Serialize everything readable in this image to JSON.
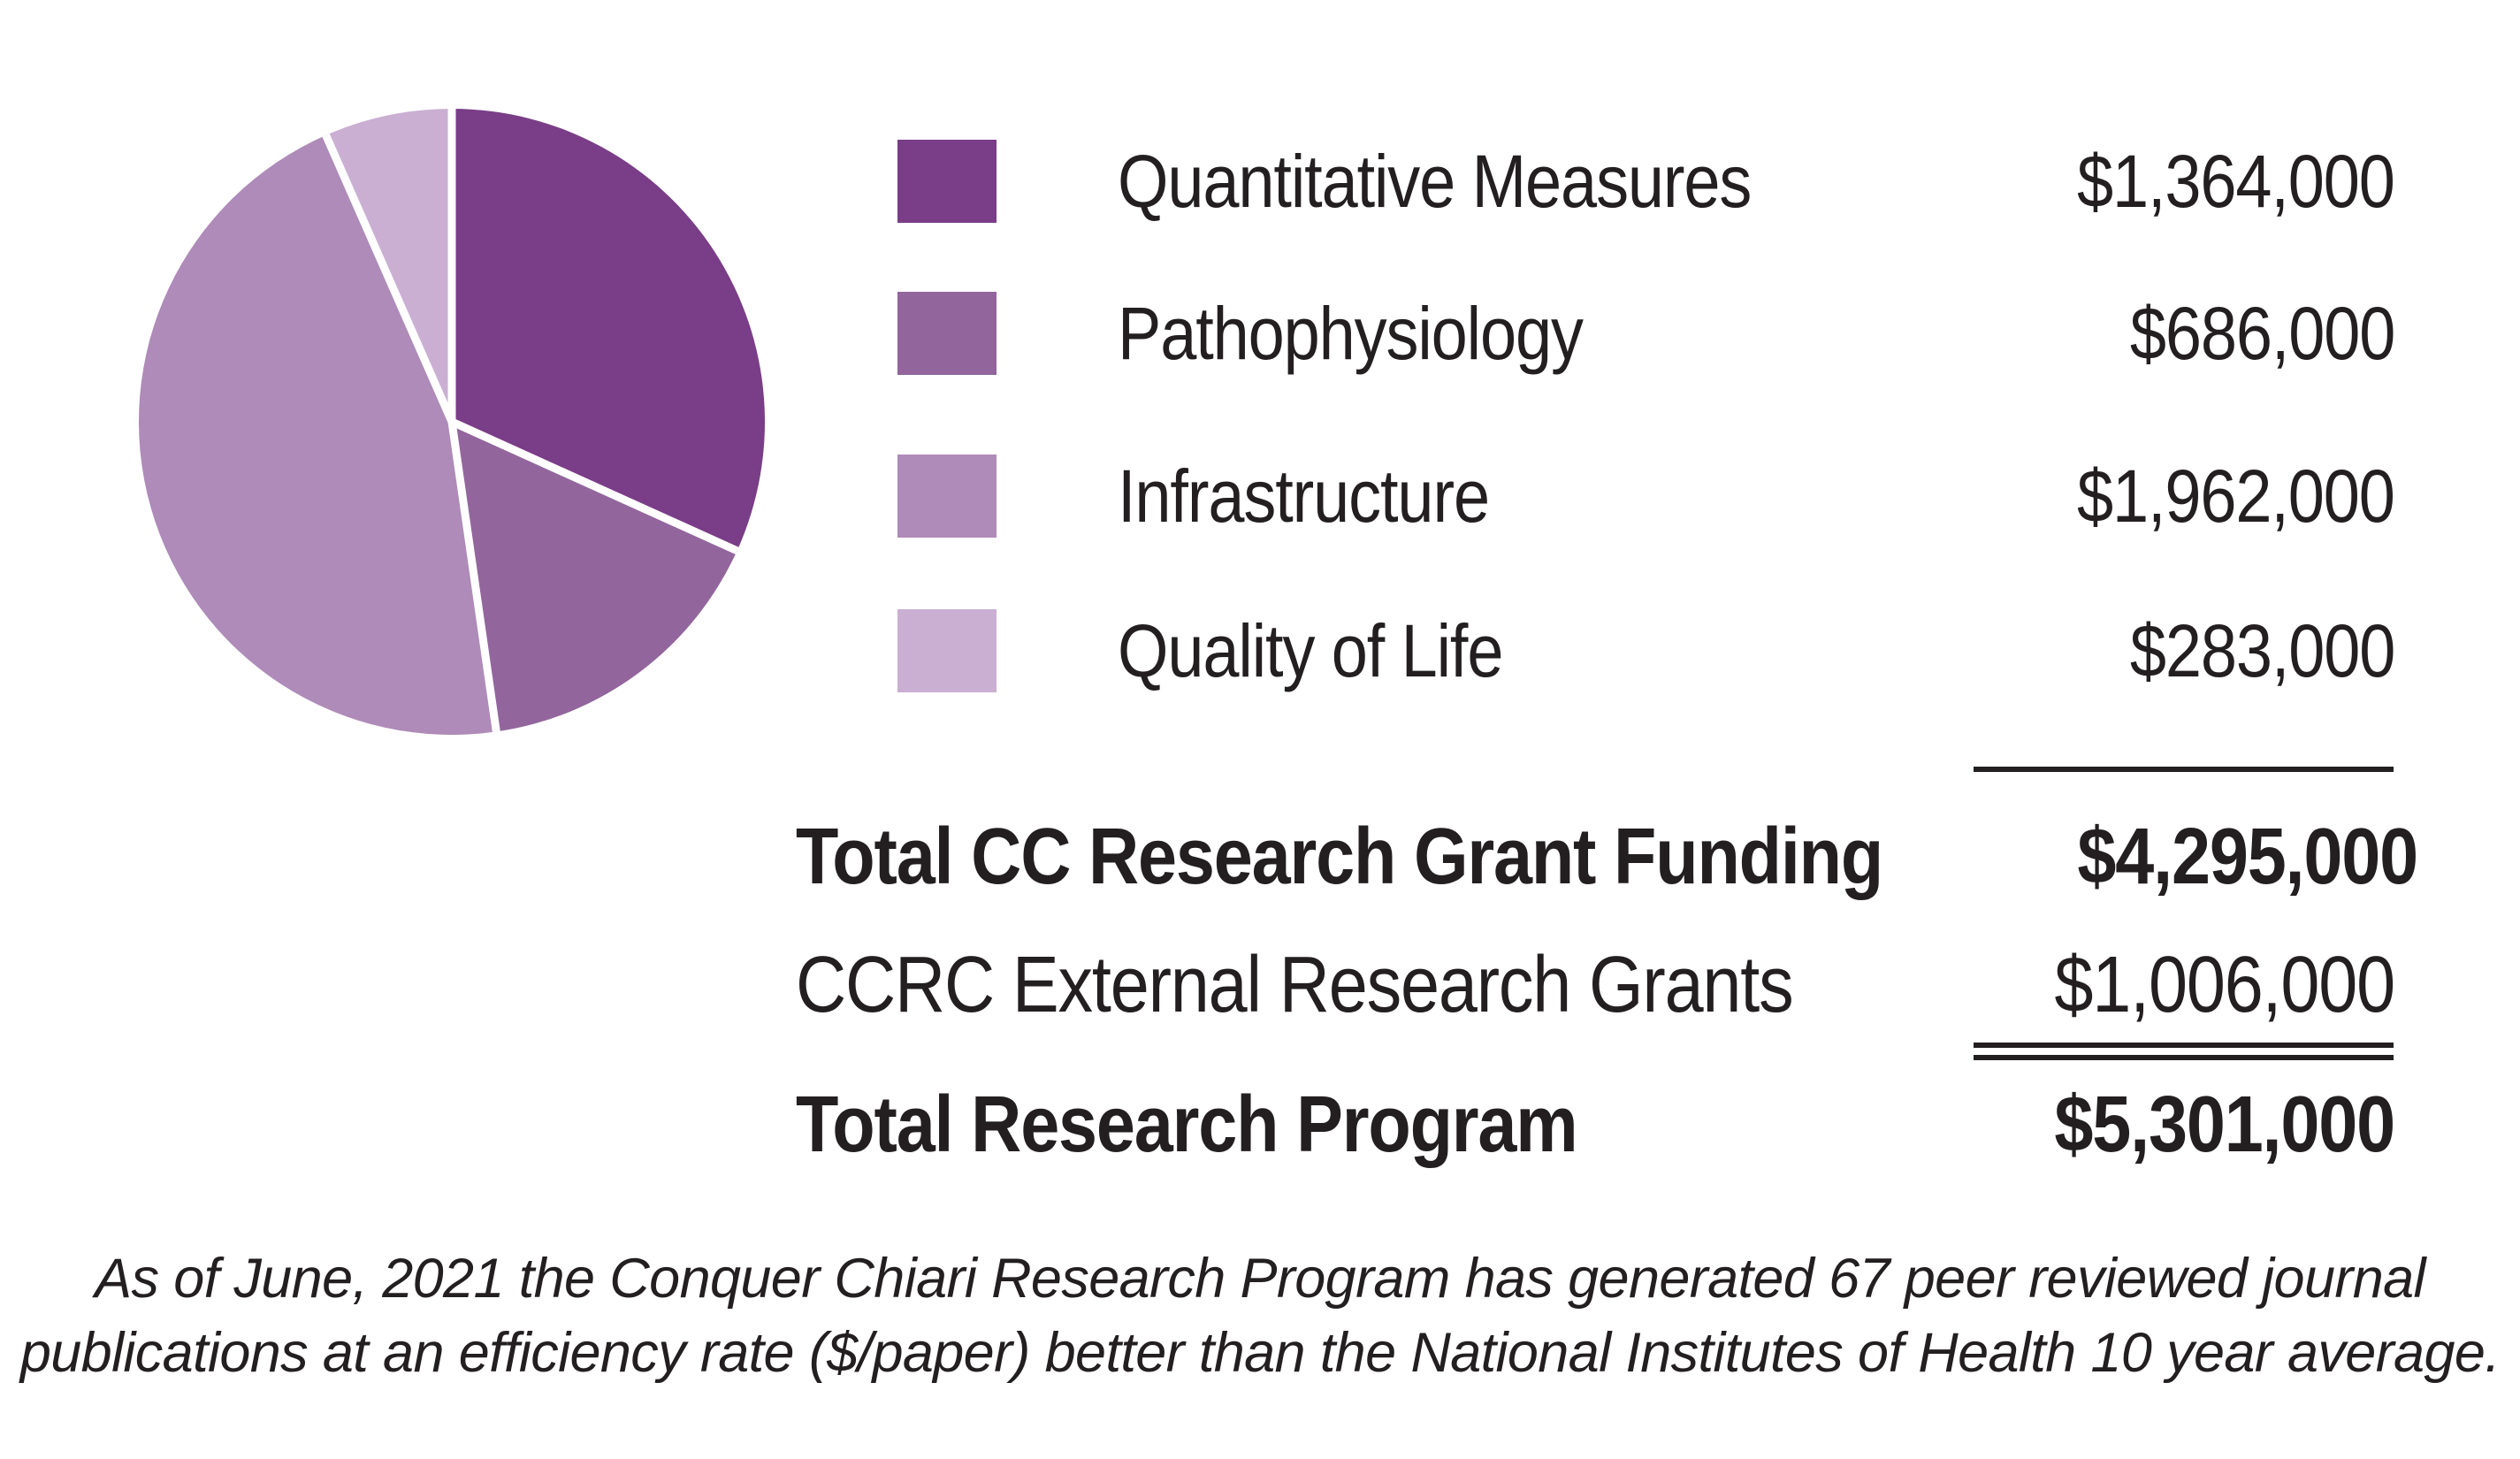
{
  "chart_data": {
    "type": "pie",
    "categories": [
      "Quantitative Measures",
      "Pathophysiology",
      "Infrastructure",
      "Quality of Life"
    ],
    "values": [
      1364000,
      686000,
      1962000,
      283000
    ],
    "colors": [
      "#7A3D87",
      "#93659D",
      "#AE8BB8",
      "#CAAFD3"
    ],
    "total": 4295000,
    "start_angle_deg": 0,
    "direction": "clockwise",
    "separator_color": "#FFFFFF",
    "separator_width": 9,
    "legend_position": "right",
    "title": ""
  },
  "legend": {
    "items": [
      {
        "label": "Quantitative Measures",
        "amount": "$1,364,000",
        "color": "#7A3D87"
      },
      {
        "label": "Pathophysiology",
        "amount": "$686,000",
        "color": "#93659D"
      },
      {
        "label": "Infrastructure",
        "amount": "$1,962,000",
        "color": "#AE8BB8"
      },
      {
        "label": "Quality of Life",
        "amount": "$283,000",
        "color": "#CAAFD3"
      }
    ]
  },
  "summary": {
    "rows": [
      {
        "label": "Total CC Research Grant Funding",
        "amount": "$4,295,000",
        "bold": true
      },
      {
        "label": "CCRC External Research Grants",
        "amount": "$1,006,000",
        "bold": false
      },
      {
        "label": "Total Research Program",
        "amount": "$5,301,000",
        "bold": true
      }
    ]
  },
  "footnote": {
    "lines": [
      "As of June, 2021 the Conquer Chiari Research Program has generated 67 peer reviewed journal",
      "publications at an efficiency rate ($/paper) better than the National Institutes of Health 10 year average."
    ]
  },
  "colors": {
    "text": "#231F20",
    "background": "#FFFFFF"
  }
}
